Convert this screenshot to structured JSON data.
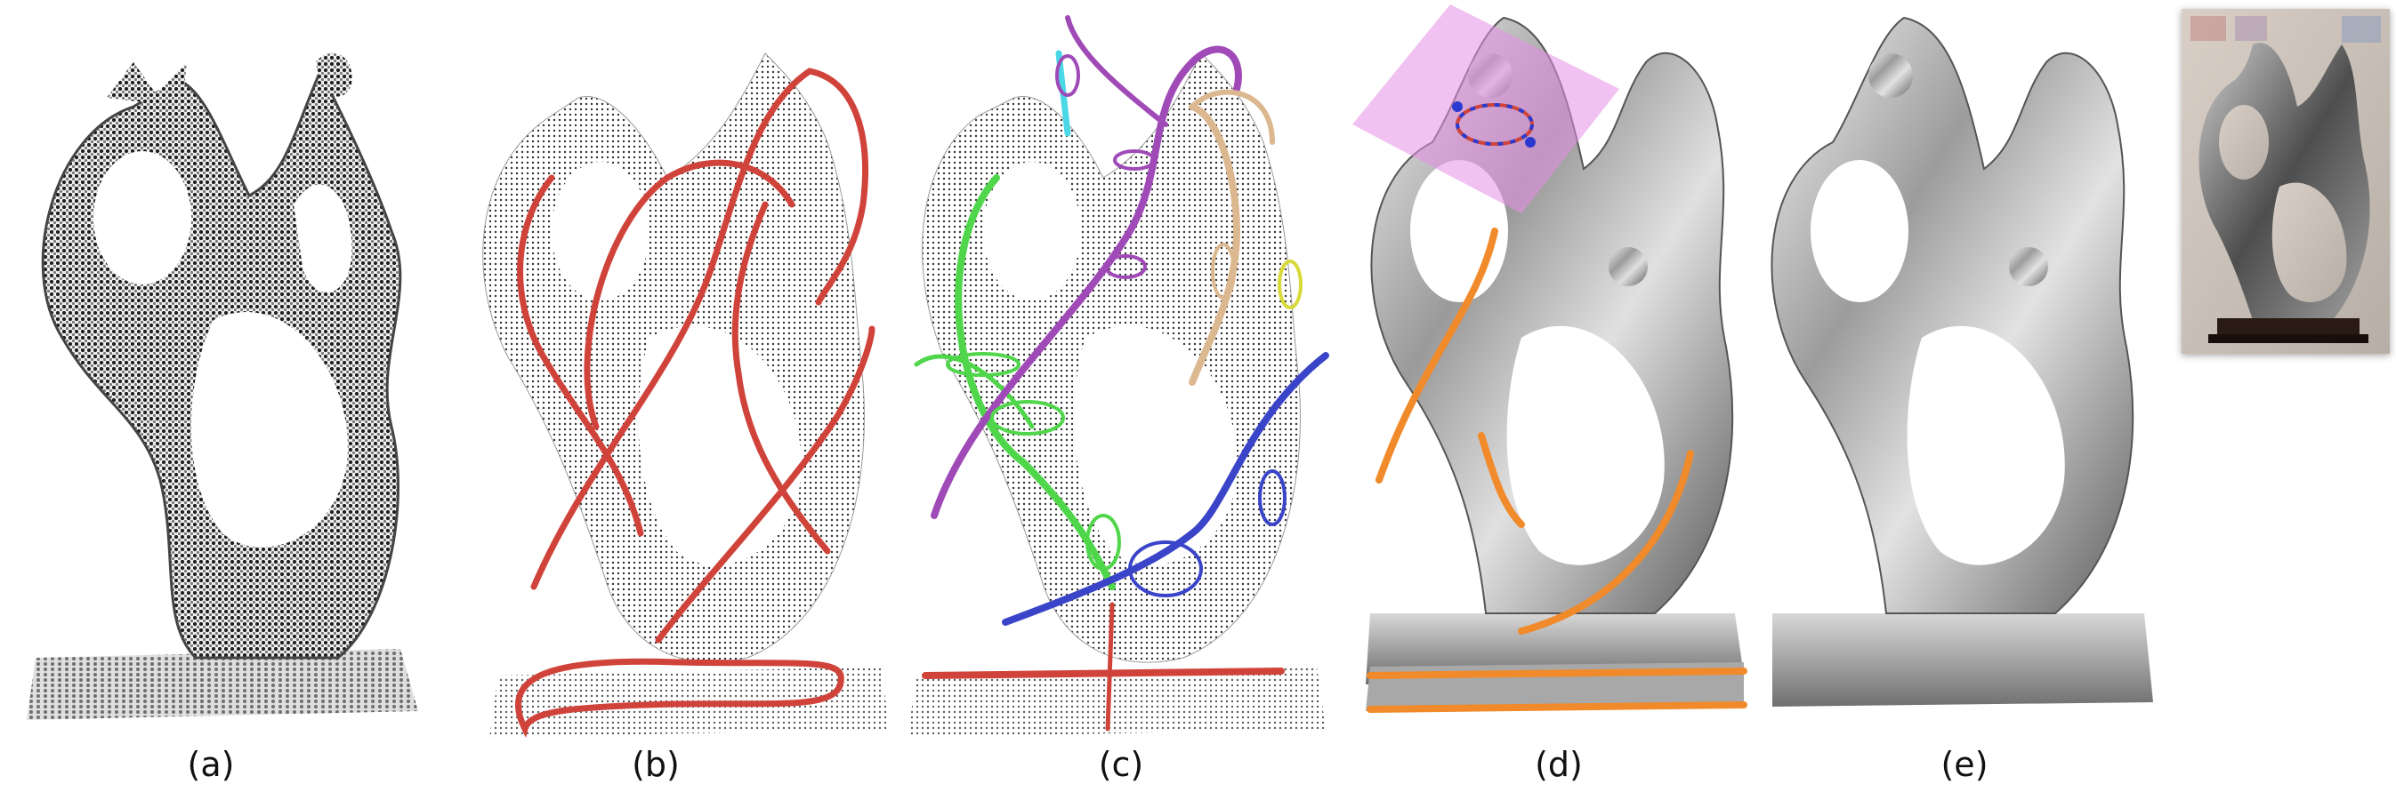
{
  "figure": {
    "panels": [
      {
        "id": "a",
        "label": "(a)",
        "content": "raw point cloud"
      },
      {
        "id": "b",
        "label": "(b)",
        "content": "point cloud with red skeleton curves"
      },
      {
        "id": "c",
        "label": "(c)",
        "content": "point cloud with colored tubular curves and cross-section rings"
      },
      {
        "id": "d",
        "label": "(d)",
        "content": "metallic surface with orange feature curves and magenta cutting plane"
      },
      {
        "id": "e",
        "label": "(e)",
        "content": "final metallic surface"
      }
    ],
    "photo": {
      "content": "photograph of the original sculpture"
    }
  },
  "colors": {
    "skeleton": "#d0433a",
    "feature": "#f08a2a",
    "plane": "#e58ee6",
    "metal_dark": "#5c5c5c",
    "metal_light": "#e8e8e8",
    "curve_green": "#4fd64a",
    "curve_purple": "#a04ab8",
    "curve_tan": "#dcb890",
    "curve_blue": "#3a44c8",
    "curve_cyan": "#4ad7e6",
    "curve_yellow": "#d9d93a"
  }
}
